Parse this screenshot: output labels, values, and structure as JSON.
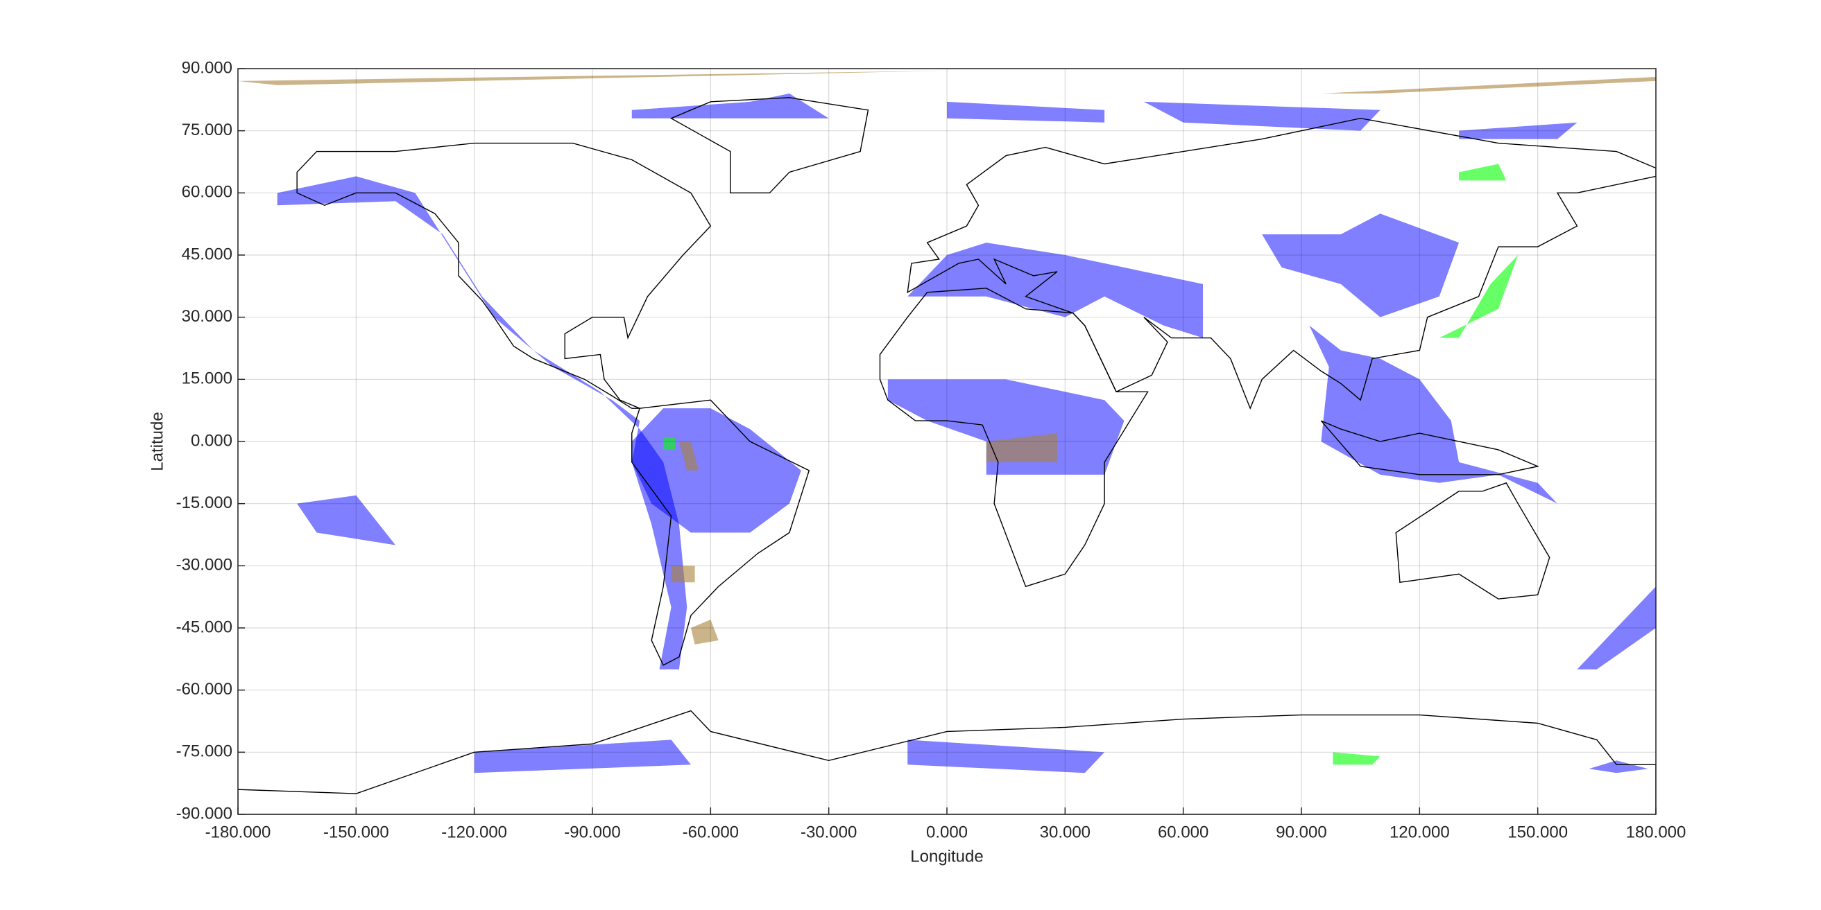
{
  "chart_data": {
    "type": "map",
    "xlabel": "Longitude",
    "ylabel": "Latitude",
    "xlim": [
      -180,
      180
    ],
    "ylim": [
      -90,
      90
    ],
    "xticks": [
      {
        "value": -180,
        "label": "-180.000"
      },
      {
        "value": -150,
        "label": "-150.000"
      },
      {
        "value": -120,
        "label": "-120.000"
      },
      {
        "value": -90,
        "label": "-90.000"
      },
      {
        "value": -60,
        "label": "-60.000"
      },
      {
        "value": -30,
        "label": "-30.000"
      },
      {
        "value": 0,
        "label": "0.000"
      },
      {
        "value": 30,
        "label": "30.000"
      },
      {
        "value": 60,
        "label": "60.000"
      },
      {
        "value": 90,
        "label": "90.000"
      },
      {
        "value": 120,
        "label": "120.000"
      },
      {
        "value": 150,
        "label": "150.000"
      },
      {
        "value": 180,
        "label": "180.000"
      }
    ],
    "yticks": [
      {
        "value": -90,
        "label": "-90.000"
      },
      {
        "value": -75,
        "label": "-75.000"
      },
      {
        "value": -60,
        "label": "-60.000"
      },
      {
        "value": -45,
        "label": "-45.000"
      },
      {
        "value": -30,
        "label": "-30.000"
      },
      {
        "value": -15,
        "label": "-15.000"
      },
      {
        "value": 0,
        "label": "0.000"
      },
      {
        "value": 15,
        "label": "15.000"
      },
      {
        "value": 30,
        "label": "30.000"
      },
      {
        "value": 45,
        "label": "45.000"
      },
      {
        "value": 60,
        "label": "60.000"
      },
      {
        "value": 75,
        "label": "75.000"
      },
      {
        "value": 90,
        "label": "90.000"
      }
    ],
    "grid": true
  }
}
